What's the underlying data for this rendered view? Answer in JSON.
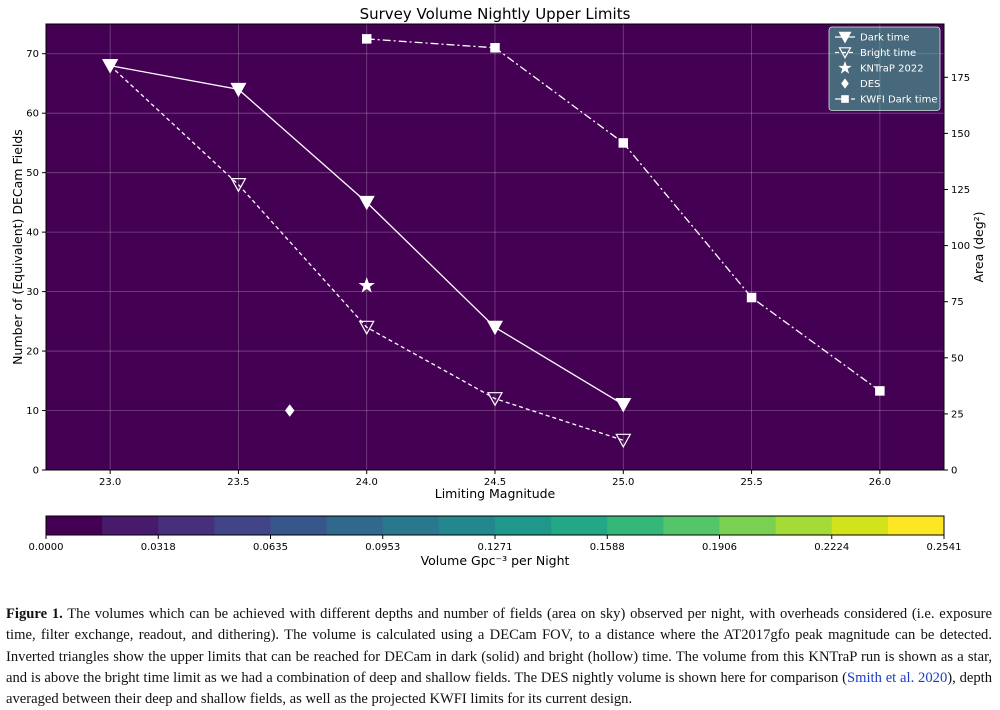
{
  "chart_data": {
    "type": "line",
    "title": "Survey Volume Nightly Upper Limits",
    "xlabel": "Limiting Magnitude",
    "ylabel": "Number of (Equivalent) DECam Fields",
    "ylabel_right": "Area (deg²)",
    "xlim": [
      22.75,
      26.25
    ],
    "ylim": [
      0,
      75
    ],
    "ylim_right": [
      0,
      198.75
    ],
    "x_ticks": [
      "23.0",
      "23.5",
      "24.0",
      "24.5",
      "25.0",
      "25.5",
      "26.0"
    ],
    "y_ticks": [
      "0",
      "10",
      "20",
      "30",
      "40",
      "50",
      "60",
      "70"
    ],
    "y_ticks_right": [
      "0",
      "25",
      "50",
      "75",
      "100",
      "125",
      "150",
      "175"
    ],
    "grid": true,
    "legend_position": "top-right",
    "background": "filled contour of survey volume, increasing toward faint magnitudes and many fields",
    "series": [
      {
        "name": "Dark time",
        "marker": "triangle-down-filled",
        "line": "solid",
        "color": "#ffffff",
        "x": [
          23.0,
          23.5,
          24.0,
          24.5,
          25.0
        ],
        "y": [
          68,
          64,
          45,
          24,
          11
        ]
      },
      {
        "name": "Bright time",
        "marker": "triangle-down-hollow",
        "line": "dashed",
        "color": "#ffffff",
        "x": [
          23.0,
          23.5,
          24.0,
          24.5,
          25.0
        ],
        "y": [
          68,
          48,
          24,
          12,
          5
        ]
      },
      {
        "name": "KNTraP 2022",
        "marker": "star",
        "line": "none",
        "color": "#ffffff",
        "x": [
          24.0
        ],
        "y": [
          31
        ]
      },
      {
        "name": "DES",
        "marker": "diamond",
        "line": "none",
        "color": "#ffffff",
        "x": [
          23.7
        ],
        "y": [
          10
        ]
      },
      {
        "name": "KWFI Dark time",
        "marker": "square",
        "line": "dashdot",
        "color": "#ffffff",
        "x": [
          24.0,
          24.5,
          25.0,
          25.5,
          26.0
        ],
        "y": [
          72.5,
          71,
          55,
          29,
          13.3
        ]
      }
    ],
    "colorbar": {
      "label": "Volume Gpc⁻³ per Night",
      "tick_labels": [
        "0.0000",
        "0.0318",
        "0.0635",
        "0.0953",
        "0.1271",
        "0.1588",
        "0.1906",
        "0.2224",
        "0.2541"
      ],
      "levels": [
        "#440154",
        "#481a6c",
        "#472f7d",
        "#414487",
        "#39568c",
        "#31688e",
        "#2a788e",
        "#23888e",
        "#1f988b",
        "#22a884",
        "#35b779",
        "#54c568",
        "#7ad151",
        "#a5db36",
        "#d2e21b",
        "#fde725"
      ]
    }
  },
  "caption": {
    "label": "Figure 1.",
    "text_1": " The volumes which can be achieved with different depths and number of fields (area on sky) observed per night, with overheads considered (i.e. exposure time, filter exchange, readout, and dithering). The volume is calculated using a DECam FOV, to a distance where the AT2017gfo peak magnitude can be detected. Inverted triangles show the upper limits that can be reached for DECam in dark (solid) and bright (hollow) time. The volume from this KNTraP run is shown as a star, and is above the bright time limit as we had a combination of deep and shallow fields. The DES nightly volume is shown here for comparison (",
    "citation": "Smith et al. 2020",
    "text_2": "), depth averaged between their deep and shallow fields, as well as the projected KWFI limits for its current design."
  }
}
